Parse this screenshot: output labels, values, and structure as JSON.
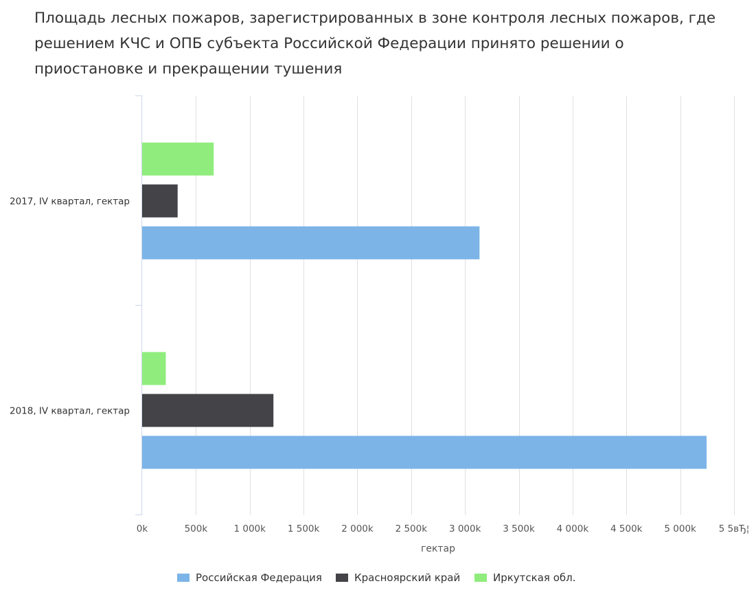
{
  "colors": {
    "ru": "#7cb4e8",
    "krasnoyarsk": "#434348",
    "irkutsk": "#90ed7d",
    "grid": "#e0e0e0",
    "axis": "#ccd6eb",
    "text": "#333333",
    "tick_text": "#555555"
  },
  "chart_data": {
    "type": "bar",
    "orientation": "horizontal",
    "title": "Площадь лесных пожаров, зарегистрированных в зоне контроля лесных пожаров, где решением КЧС и ОПБ субъекта Российской Федерации принято решении о приостановке и прекращении тушения",
    "title_lines": [
      "Площадь лесных пожаров, зарегистрированных в зоне контроля лесных пожаров, где",
      "решением КЧС и ОПБ субъекта Российской Федерации принято решении о",
      "приостановке и прекращении тушения"
    ],
    "categories": [
      "2017, IV квартал, гектар",
      "2018, IV квартал, гектар"
    ],
    "series": [
      {
        "name": "Иркутская обл.",
        "color_key": "irkutsk",
        "values": [
          665000,
          220000
        ]
      },
      {
        "name": "Красноярский край",
        "color_key": "krasnoyarsk",
        "values": [
          330000,
          1220000
        ]
      },
      {
        "name": "Российская Федерация",
        "color_key": "ru",
        "values": [
          3135000,
          5245000
        ]
      }
    ],
    "xlabel": "гектар",
    "ylabel": "",
    "xlim": [
      0,
      5500000
    ],
    "x_ticks": [
      0,
      500000,
      1000000,
      1500000,
      2000000,
      2500000,
      3000000,
      3500000,
      4000000,
      4500000,
      5000000,
      5500000
    ],
    "x_tick_labels": [
      "0k",
      "500k",
      "1 000k",
      "1 500k",
      "2 000k",
      "2 500k",
      "3 000k",
      "3 500k",
      "4 000k",
      "4 500k",
      "5 000k",
      "5 5вЂ¦"
    ],
    "grid": true,
    "legend_position": "bottom",
    "legend_order": [
      "Российская Федерация",
      "Красноярский край",
      "Иркутская обл."
    ]
  }
}
